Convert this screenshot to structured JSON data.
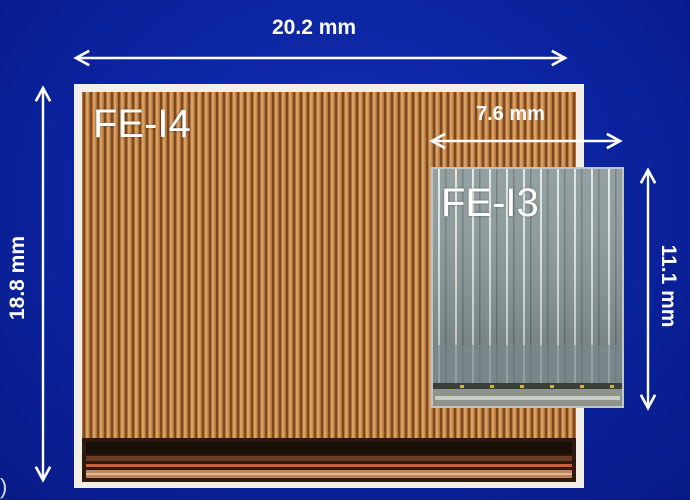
{
  "dimensions": {
    "fe_i4_width": "20.2 mm",
    "fe_i4_height": "18.8 mm",
    "fe_i3_width": "7.6 mm",
    "fe_i3_height": "11.1 mm"
  },
  "chips": {
    "large_label": "FE-I4",
    "small_label": "FE-I3"
  },
  "colors": {
    "background": "#0b239f",
    "arrow": "#ffffff",
    "fe_i4_die": "#b8773a",
    "fe_i4_frame": "#f2efe6",
    "fe_i3_die": "#8d9a9c"
  },
  "edge_glyph": ")"
}
